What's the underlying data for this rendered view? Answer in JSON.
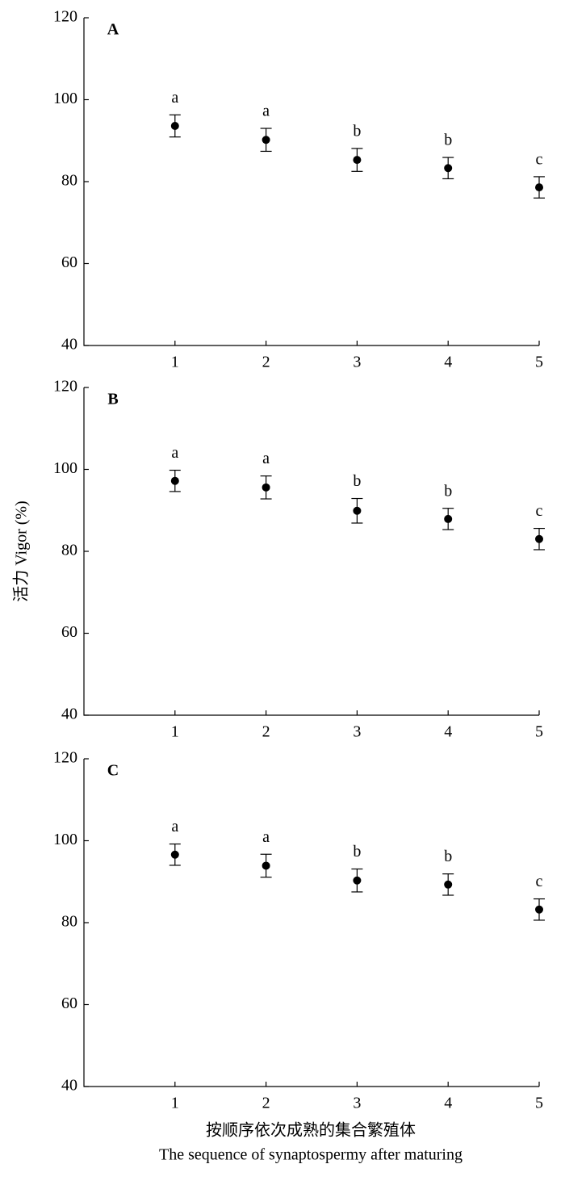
{
  "chart_data": [
    {
      "type": "scatter",
      "panel_label": "A",
      "x": [
        1,
        2,
        3,
        4,
        5
      ],
      "values": [
        93.6,
        90.2,
        85.3,
        83.3,
        78.6
      ],
      "errors": [
        2.7,
        2.8,
        2.8,
        2.6,
        2.6
      ],
      "point_labels": [
        "a",
        "a",
        "b",
        "b",
        "c"
      ],
      "color": "#000000",
      "xlim": [
        0,
        5
      ],
      "xticks": [
        1,
        2,
        3,
        4,
        5
      ],
      "ylim": [
        40,
        120
      ],
      "yticks": [
        40,
        60,
        80,
        100,
        120
      ]
    },
    {
      "type": "scatter",
      "panel_label": "B",
      "ylabel": "活力 Vigor (%)",
      "x": [
        1,
        2,
        3,
        4,
        5
      ],
      "values": [
        97.2,
        95.6,
        89.9,
        87.9,
        83.0
      ],
      "errors": [
        2.6,
        2.8,
        3.0,
        2.6,
        2.6
      ],
      "point_labels": [
        "a",
        "a",
        "b",
        "b",
        "c"
      ],
      "color": "#000000",
      "xlim": [
        0,
        5
      ],
      "xticks": [
        1,
        2,
        3,
        4,
        5
      ],
      "ylim": [
        40,
        120
      ],
      "yticks": [
        40,
        60,
        80,
        100,
        120
      ]
    },
    {
      "type": "scatter",
      "panel_label": "C",
      "xlabel": [
        "按顺序依次成熟的集合繁殖体",
        "The sequence of synaptospermy after maturing"
      ],
      "x": [
        1,
        2,
        3,
        4,
        5
      ],
      "values": [
        96.6,
        93.9,
        90.3,
        89.3,
        83.2
      ],
      "errors": [
        2.6,
        2.8,
        2.8,
        2.6,
        2.6
      ],
      "point_labels": [
        "a",
        "a",
        "b",
        "b",
        "c"
      ],
      "color": "#000000",
      "xlim": [
        0,
        5
      ],
      "xticks": [
        1,
        2,
        3,
        4,
        5
      ],
      "ylim": [
        40,
        120
      ],
      "yticks": [
        40,
        60,
        80,
        100,
        120
      ]
    }
  ]
}
